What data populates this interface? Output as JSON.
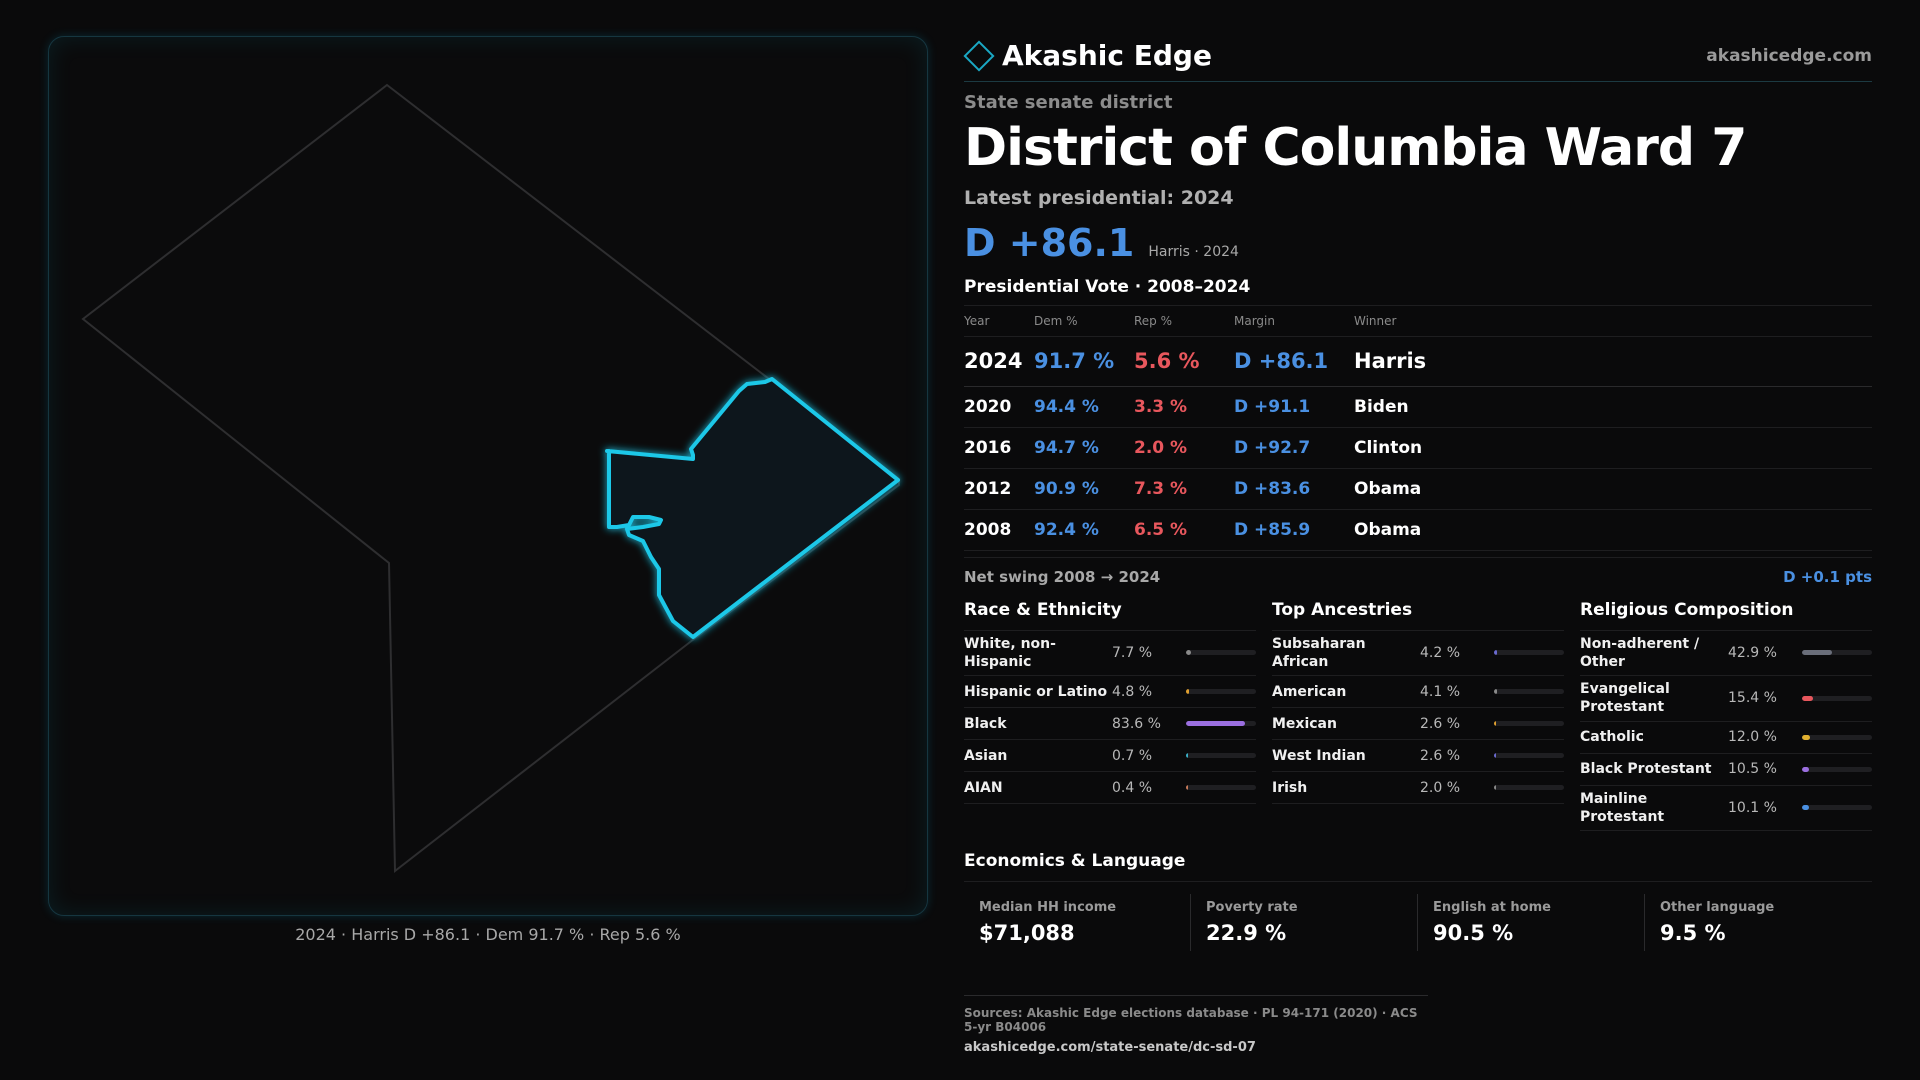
{
  "brand": {
    "name": "Akashic Edge",
    "url": "akashicedge.com",
    "accent": "#1aa8c4"
  },
  "district": {
    "kicker": "State senate district",
    "title": "District of Columbia Ward 7",
    "latest": "Latest presidential: 2024",
    "margin": "D +86.1",
    "margin_sub": "Harris · 2024"
  },
  "votes": {
    "title": "Presidential Vote · 2008–2024",
    "headers": [
      "Year",
      "Dem %",
      "Rep %",
      "Margin",
      "Winner"
    ],
    "rows": [
      {
        "year": "2024",
        "dem": "91.7 %",
        "rep": "5.6 %",
        "margin": "D +86.1",
        "winner": "Harris"
      },
      {
        "year": "2020",
        "dem": "94.4 %",
        "rep": "3.3 %",
        "margin": "D +91.1",
        "winner": "Biden"
      },
      {
        "year": "2016",
        "dem": "94.7 %",
        "rep": "2.0 %",
        "margin": "D +92.7",
        "winner": "Clinton"
      },
      {
        "year": "2012",
        "dem": "90.9 %",
        "rep": "7.3 %",
        "margin": "D +83.6",
        "winner": "Obama"
      },
      {
        "year": "2008",
        "dem": "92.4 %",
        "rep": "6.5 %",
        "margin": "D +85.9",
        "winner": "Obama"
      }
    ],
    "swing_label": "Net swing 2008 → 2024",
    "swing_value": "D +0.1 pts",
    "dem_color": "#4a90e2",
    "rep_color": "#e8575d"
  },
  "race": {
    "title": "Race & Ethnicity",
    "items": [
      {
        "name": "White, non-Hispanic",
        "value": "7.7 %",
        "pct": 7.7,
        "color": "#8a8a8a"
      },
      {
        "name": "Hispanic or Latino",
        "value": "4.8 %",
        "pct": 4.8,
        "color": "#e0a030"
      },
      {
        "name": "Black",
        "value": "83.6 %",
        "pct": 83.6,
        "color": "#9b6fe0"
      },
      {
        "name": "Asian",
        "value": "0.7 %",
        "pct": 0.7,
        "color": "#3ab0c8"
      },
      {
        "name": "AIAN",
        "value": "0.4 %",
        "pct": 0.4,
        "color": "#c87a5a"
      }
    ]
  },
  "ancestry": {
    "title": "Top Ancestries",
    "items": [
      {
        "name": "Subsaharan African",
        "value": "4.2 %",
        "pct": 4.2,
        "color": "#6a6ad0"
      },
      {
        "name": "American",
        "value": "4.1 %",
        "pct": 4.1,
        "color": "#8a8a8a"
      },
      {
        "name": "Mexican",
        "value": "2.6 %",
        "pct": 2.6,
        "color": "#e0a030"
      },
      {
        "name": "West Indian",
        "value": "2.6 %",
        "pct": 2.6,
        "color": "#6a6ad0"
      },
      {
        "name": "Irish",
        "value": "2.0 %",
        "pct": 2.0,
        "color": "#8a8a8a"
      }
    ]
  },
  "religion": {
    "title": "Religious Composition",
    "items": [
      {
        "name": "Non-adherent / Other",
        "value": "42.9 %",
        "pct": 42.9,
        "color": "#6a6e7a"
      },
      {
        "name": "Evangelical Protestant",
        "value": "15.4 %",
        "pct": 15.4,
        "color": "#e8575d"
      },
      {
        "name": "Catholic",
        "value": "12.0 %",
        "pct": 12.0,
        "color": "#e0b030"
      },
      {
        "name": "Black Protestant",
        "value": "10.5 %",
        "pct": 10.5,
        "color": "#9b6fe0"
      },
      {
        "name": "Mainline Protestant",
        "value": "10.1 %",
        "pct": 10.1,
        "color": "#4a90e2"
      }
    ]
  },
  "economics": {
    "title": "Economics & Language",
    "items": [
      {
        "label": "Median HH income",
        "value": "$71,088"
      },
      {
        "label": "Poverty rate",
        "value": "22.9 %"
      },
      {
        "label": "English at home",
        "value": "90.5 %"
      },
      {
        "label": "Other language",
        "value": "9.5 %"
      }
    ]
  },
  "map": {
    "caption": "2024 · Harris D +86.1 · Dem 91.7 % · Rep 5.6 %",
    "outline_color": "#2e2e30",
    "highlight_color": "#1ec8e8",
    "highlight_fill": "#10161f"
  },
  "sources": {
    "line": "Sources: Akashic Edge elections database · PL 94-171 (2020) · ACS 5-yr B04006",
    "url": "akashicedge.com/state-senate/dc-sd-07"
  }
}
